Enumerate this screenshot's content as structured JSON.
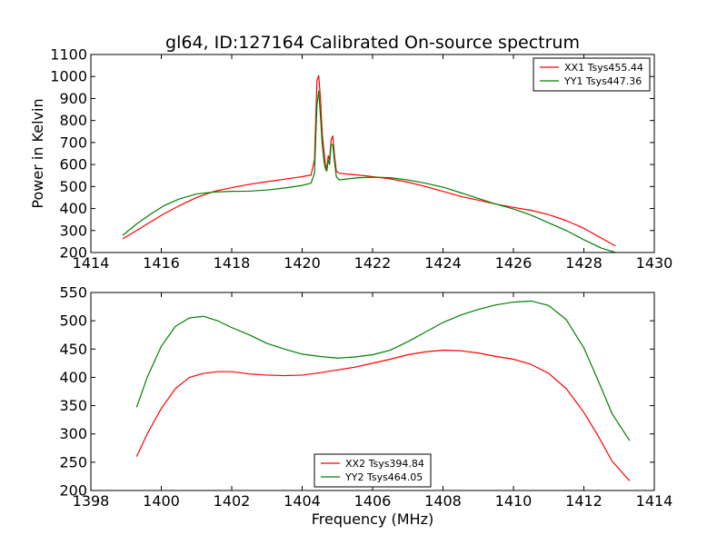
{
  "chart_data": [
    {
      "type": "line",
      "title": "gl64, ID:127164 Calibrated On-source spectrum",
      "xlabel": "",
      "ylabel": "Power in Kelvin",
      "xlim": [
        1414,
        1430
      ],
      "ylim": [
        200,
        1100
      ],
      "xticks": [
        1414,
        1416,
        1418,
        1420,
        1422,
        1424,
        1426,
        1428,
        1430
      ],
      "yticks": [
        200,
        300,
        400,
        500,
        600,
        700,
        800,
        900,
        1000,
        1100
      ],
      "grid": false,
      "legend_position": "top-right",
      "series": [
        {
          "name": "XX1 Tsys455.44",
          "color": "#ff0000",
          "x": [
            1414.9,
            1415.3,
            1415.7,
            1416.1,
            1416.5,
            1417.0,
            1417.5,
            1418.0,
            1418.5,
            1419.0,
            1419.5,
            1420.0,
            1420.25,
            1420.35,
            1420.42,
            1420.47,
            1420.52,
            1420.57,
            1420.62,
            1420.66,
            1420.7,
            1420.74,
            1420.78,
            1420.82,
            1420.87,
            1420.92,
            1420.97,
            1421.05,
            1421.3,
            1421.6,
            1422.0,
            1422.5,
            1423.0,
            1423.5,
            1424.0,
            1424.5,
            1425.0,
            1425.5,
            1426.0,
            1426.5,
            1427.0,
            1427.5,
            1428.0,
            1428.5,
            1428.9
          ],
          "y": [
            262,
            300,
            340,
            378,
            412,
            450,
            478,
            495,
            510,
            522,
            533,
            545,
            552,
            620,
            980,
            1005,
            900,
            740,
            660,
            600,
            580,
            640,
            620,
            710,
            730,
            640,
            570,
            560,
            556,
            552,
            545,
            535,
            520,
            500,
            478,
            455,
            438,
            420,
            405,
            392,
            372,
            345,
            310,
            265,
            230
          ]
        },
        {
          "name": "YY1 Tsys447.36",
          "color": "#008000",
          "x": [
            1414.9,
            1415.3,
            1415.7,
            1416.1,
            1416.5,
            1417.0,
            1417.5,
            1418.0,
            1418.5,
            1419.0,
            1419.5,
            1420.0,
            1420.25,
            1420.35,
            1420.42,
            1420.47,
            1420.52,
            1420.57,
            1420.62,
            1420.66,
            1420.7,
            1420.74,
            1420.78,
            1420.82,
            1420.87,
            1420.92,
            1420.97,
            1421.05,
            1421.3,
            1421.6,
            1422.0,
            1422.5,
            1423.0,
            1423.5,
            1424.0,
            1424.5,
            1425.0,
            1425.5,
            1426.0,
            1426.5,
            1427.0,
            1427.5,
            1428.0,
            1428.5,
            1428.9
          ],
          "y": [
            278,
            330,
            375,
            415,
            443,
            466,
            475,
            478,
            479,
            484,
            493,
            505,
            515,
            560,
            870,
            935,
            820,
            690,
            615,
            580,
            570,
            620,
            600,
            690,
            690,
            610,
            545,
            530,
            535,
            540,
            542,
            540,
            530,
            515,
            497,
            472,
            446,
            420,
            398,
            370,
            335,
            300,
            258,
            220,
            200
          ]
        }
      ]
    },
    {
      "type": "line",
      "title": "",
      "xlabel": "Frequency (MHz)",
      "ylabel": "",
      "xlim": [
        1398,
        1414
      ],
      "ylim": [
        200,
        550
      ],
      "xticks": [
        1398,
        1400,
        1402,
        1404,
        1406,
        1408,
        1410,
        1412,
        1414
      ],
      "yticks": [
        200,
        250,
        300,
        350,
        400,
        450,
        500,
        550
      ],
      "grid": false,
      "legend_position": "bottom-center",
      "series": [
        {
          "name": "XX2 Tsys394.84",
          "color": "#ff0000",
          "x": [
            1399.3,
            1399.6,
            1400.0,
            1400.4,
            1400.8,
            1401.2,
            1401.6,
            1402.0,
            1402.5,
            1403.0,
            1403.5,
            1404.0,
            1404.5,
            1405.0,
            1405.5,
            1406.0,
            1406.5,
            1407.0,
            1407.5,
            1408.0,
            1408.5,
            1409.0,
            1409.5,
            1410.0,
            1410.5,
            1411.0,
            1411.5,
            1412.0,
            1412.4,
            1412.8,
            1413.3
          ],
          "y": [
            260,
            300,
            345,
            380,
            400,
            407,
            410,
            410,
            406,
            404,
            403,
            404,
            408,
            413,
            418,
            425,
            432,
            440,
            445,
            448,
            447,
            443,
            437,
            432,
            423,
            407,
            380,
            338,
            297,
            252,
            217
          ]
        },
        {
          "name": "YY2 Tsys464.05",
          "color": "#008000",
          "x": [
            1399.3,
            1399.6,
            1400.0,
            1400.4,
            1400.8,
            1401.2,
            1401.6,
            1402.0,
            1402.5,
            1403.0,
            1403.5,
            1404.0,
            1404.5,
            1405.0,
            1405.5,
            1406.0,
            1406.5,
            1407.0,
            1407.5,
            1408.0,
            1408.5,
            1409.0,
            1409.5,
            1410.0,
            1410.5,
            1411.0,
            1411.5,
            1412.0,
            1412.4,
            1412.8,
            1413.3
          ],
          "y": [
            347,
            400,
            455,
            490,
            505,
            508,
            500,
            488,
            475,
            460,
            450,
            441,
            437,
            434,
            436,
            440,
            448,
            463,
            480,
            497,
            510,
            520,
            528,
            533,
            535,
            527,
            502,
            452,
            395,
            336,
            288
          ]
        }
      ]
    }
  ]
}
